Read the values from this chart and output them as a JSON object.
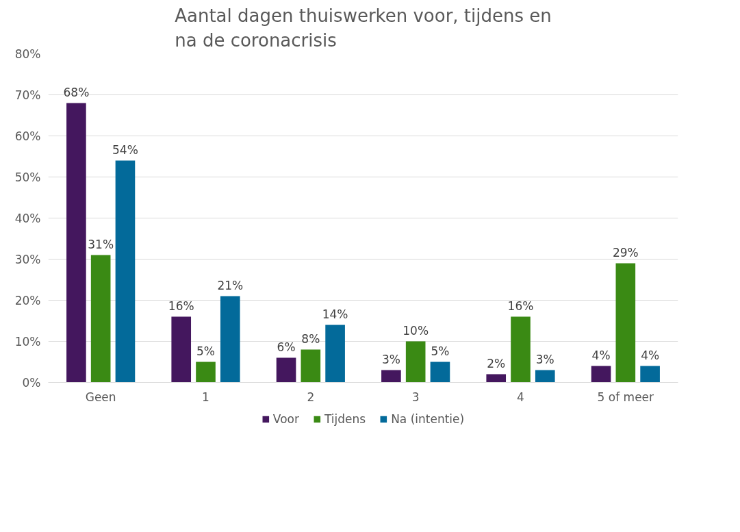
{
  "chart_data": {
    "type": "bar",
    "title": "Aantal dagen thuiswerken voor, tijdens en\nna de coronacrisis",
    "categories": [
      "Geen",
      "1",
      "2",
      "3",
      "4",
      "5 of meer"
    ],
    "series": [
      {
        "name": "Voor",
        "color": "#44175e",
        "values": [
          68,
          16,
          6,
          3,
          2,
          4
        ],
        "value_labels": [
          "68%",
          "16%",
          "6%",
          "3%",
          "2%",
          "4%"
        ]
      },
      {
        "name": "Tijdens",
        "color": "#3a8a14",
        "values": [
          31,
          5,
          8,
          10,
          16,
          29
        ],
        "value_labels": [
          "31%",
          "5%",
          "8%",
          "10%",
          "16%",
          "29%"
        ]
      },
      {
        "name": "Na (intentie)",
        "color": "#036a9a",
        "values": [
          54,
          21,
          14,
          5,
          3,
          4
        ],
        "value_labels": [
          "54%",
          "21%",
          "14%",
          "5%",
          "3%",
          "4%"
        ]
      }
    ],
    "ylim": [
      0,
      80
    ],
    "yticks": [
      {
        "value": 0,
        "label": "0%"
      },
      {
        "value": 10,
        "label": "10%"
      },
      {
        "value": 20,
        "label": "20%"
      },
      {
        "value": 30,
        "label": "30%"
      },
      {
        "value": 40,
        "label": "40%"
      },
      {
        "value": 50,
        "label": "50%"
      },
      {
        "value": 60,
        "label": "60%"
      },
      {
        "value": 70,
        "label": "70%"
      },
      {
        "value": 80,
        "label": "80%"
      }
    ],
    "grid": "y",
    "legend": "bottom"
  }
}
